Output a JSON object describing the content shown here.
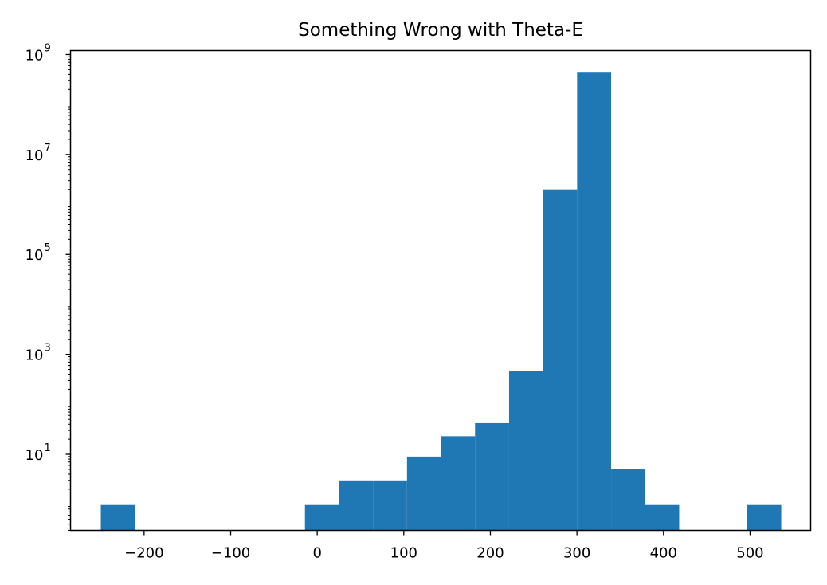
{
  "chart_data": {
    "type": "bar",
    "title": "Something Wrong with Theta-E",
    "xlabel": "",
    "ylabel": "",
    "x_scale": "linear",
    "y_scale": "log",
    "xlim": [
      -285,
      570
    ],
    "ylim": [
      0.3,
      1200000000.0
    ],
    "x_ticks": [
      {
        "value": -200,
        "label": "−200"
      },
      {
        "value": -100,
        "label": "−100"
      },
      {
        "value": 0,
        "label": "0"
      },
      {
        "value": 100,
        "label": "100"
      },
      {
        "value": 200,
        "label": "200"
      },
      {
        "value": 300,
        "label": "300"
      },
      {
        "value": 400,
        "label": "400"
      },
      {
        "value": 500,
        "label": "500"
      }
    ],
    "y_ticks": [
      {
        "value": 10,
        "base": "10",
        "exp": "1"
      },
      {
        "value": 1000,
        "base": "10",
        "exp": "3"
      },
      {
        "value": 100000,
        "base": "10",
        "exp": "5"
      },
      {
        "value": 10000000,
        "base": "10",
        "exp": "7"
      },
      {
        "value": 1000000000,
        "base": "10",
        "exp": "9"
      }
    ],
    "bin_edges": [
      -250,
      -210.7,
      -171.4,
      -132.1,
      -92.8,
      -53.5,
      -14.2,
      25.1,
      64.4,
      103.7,
      143,
      182.3,
      221.6,
      260.9,
      300.2,
      339.5,
      378.8,
      418.1,
      457.4,
      496.7,
      536
    ],
    "counts": [
      1,
      0,
      0,
      0,
      0,
      0,
      1,
      3,
      3,
      9,
      23,
      42,
      460,
      2000000,
      450000000,
      5,
      1,
      0,
      0,
      1
    ],
    "color": "#1f77b4",
    "grid": false,
    "legend": "none"
  }
}
